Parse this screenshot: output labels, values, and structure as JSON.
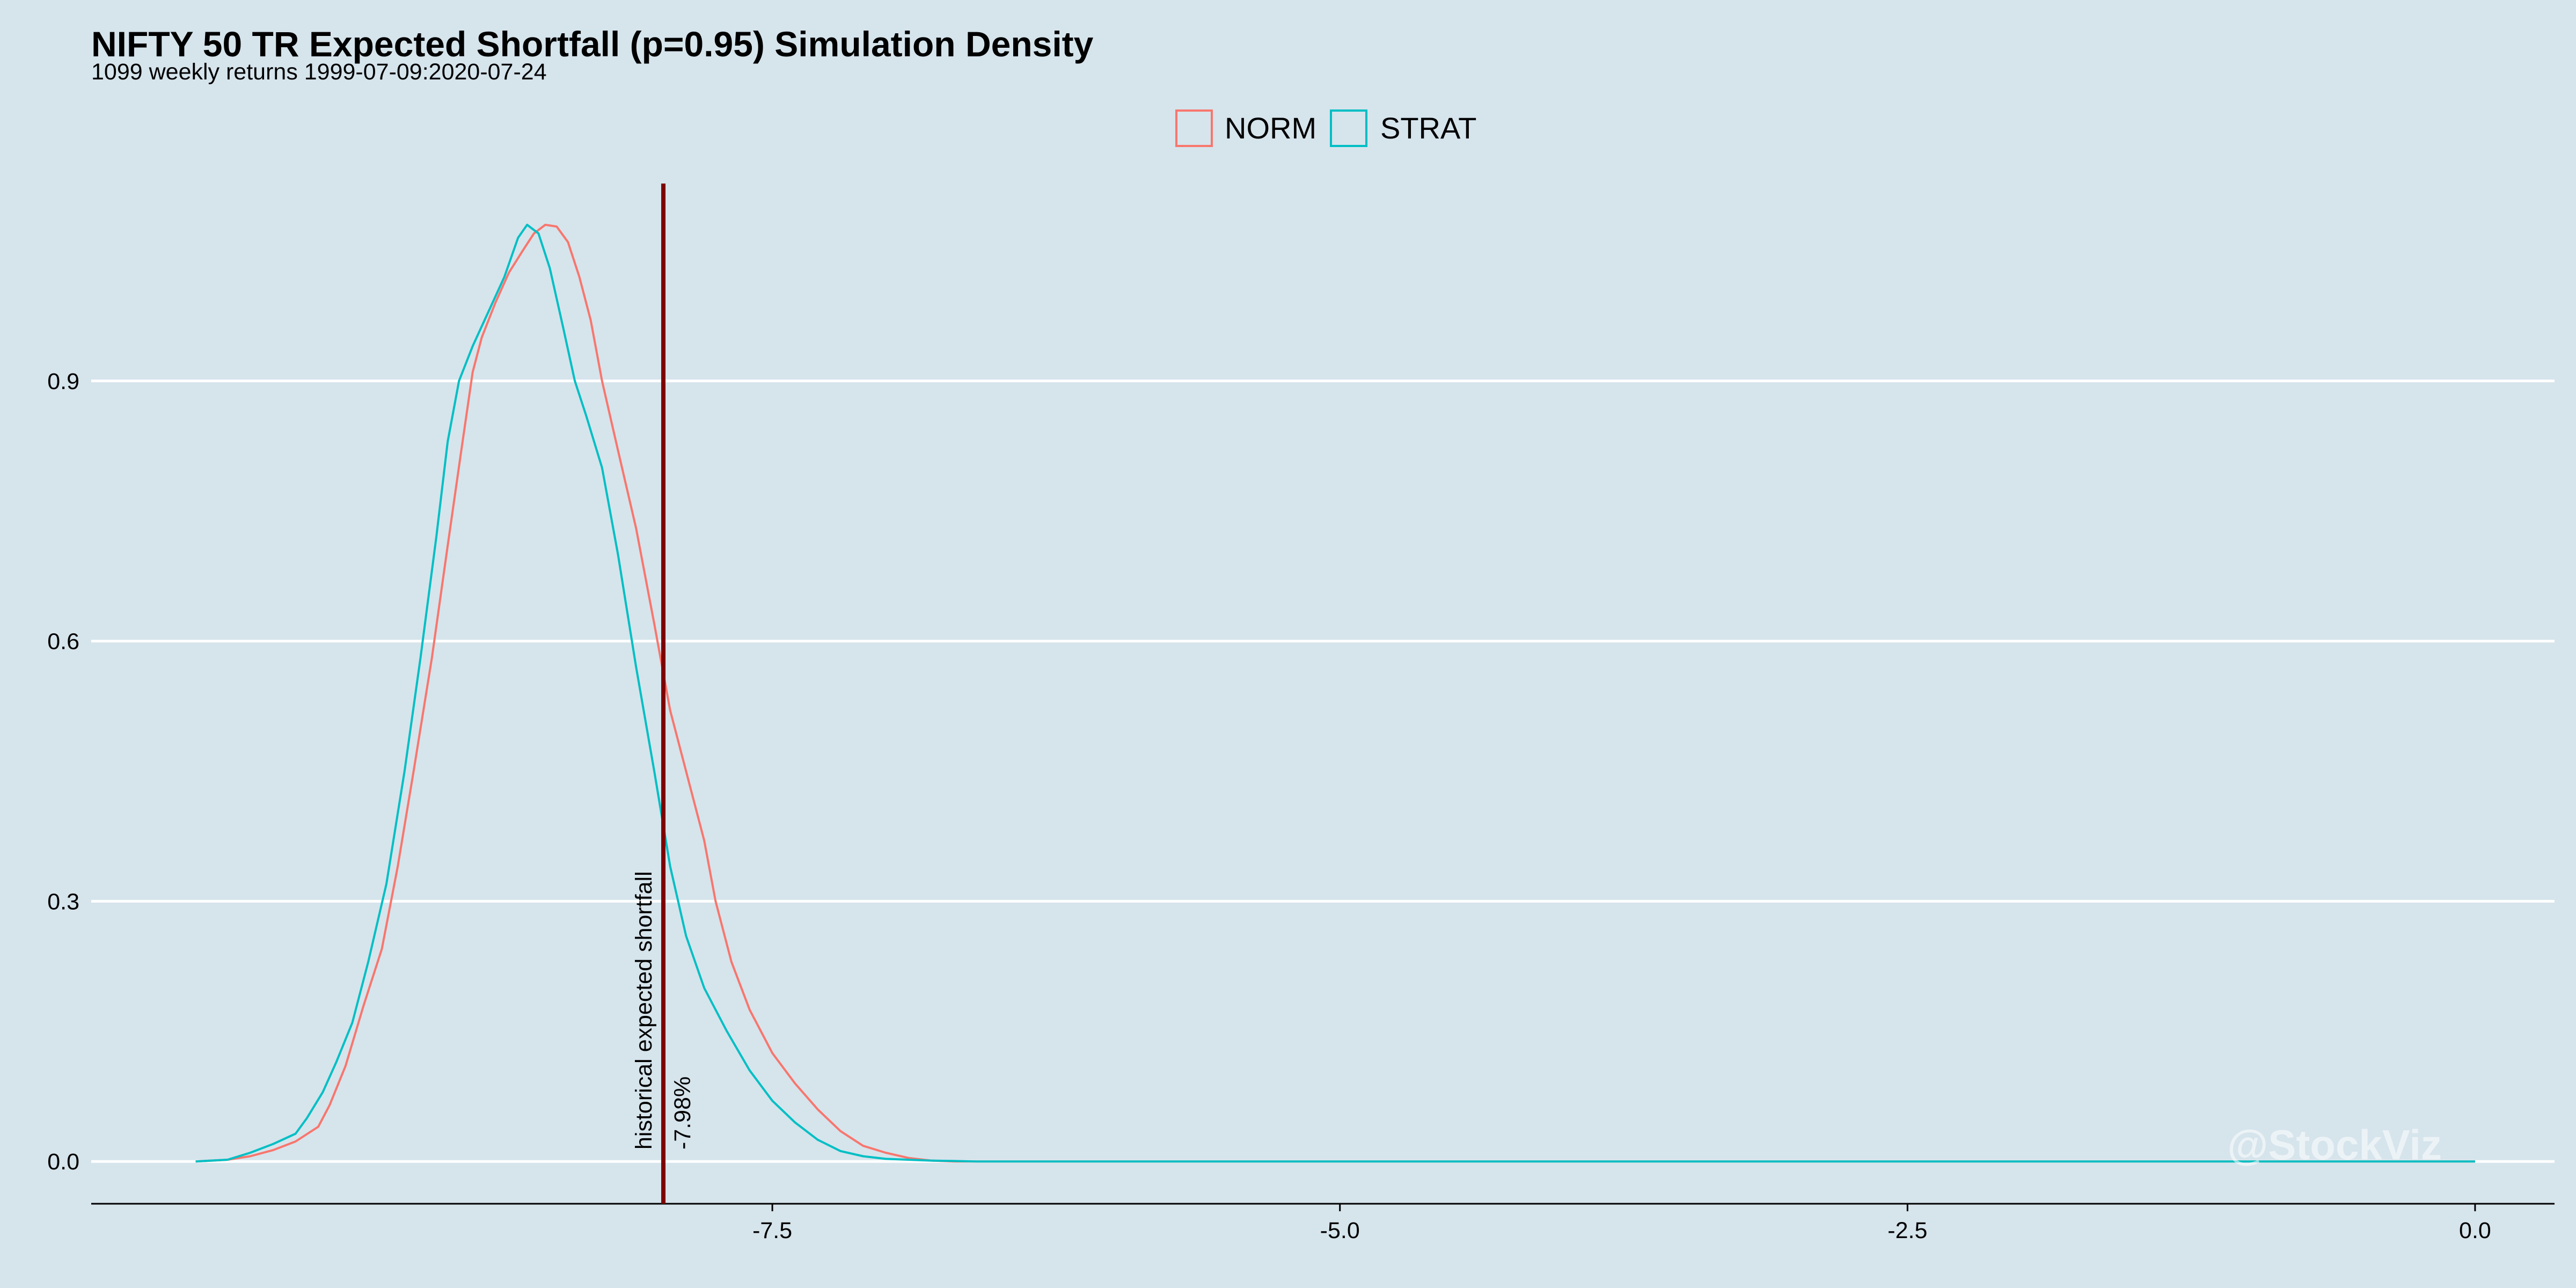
{
  "chart_data": {
    "type": "line",
    "title": "NIFTY 50 TR Expected Shortfall (p=0.95) Simulation Density",
    "subtitle": "1099 weekly returns 1999-07-09:2020-07-24",
    "xlabel": "",
    "ylabel": "",
    "xlim": [
      -10.5,
      0.35
    ],
    "ylim": [
      -0.05,
      1.135
    ],
    "xticks": [
      -7.5,
      -5.0,
      -2.5,
      0.0
    ],
    "xtick_labels": [
      "-7.5",
      "-5.0",
      "-2.5",
      "0.0"
    ],
    "yticks": [
      0.0,
      0.3,
      0.6,
      0.9
    ],
    "ytick_labels": [
      "0.0",
      "0.3",
      "0.6",
      "0.9"
    ],
    "grid": "horizontal major",
    "legend_position": "top",
    "series": [
      {
        "name": "NORM",
        "color": "#f8766d",
        "points": [
          [
            -10.04,
            0.0
          ],
          [
            -9.9,
            0.002
          ],
          [
            -9.8,
            0.006
          ],
          [
            -9.7,
            0.013
          ],
          [
            -9.6,
            0.023
          ],
          [
            -9.5,
            0.04
          ],
          [
            -9.45,
            0.065
          ],
          [
            -9.38,
            0.11
          ],
          [
            -9.3,
            0.18
          ],
          [
            -9.22,
            0.245
          ],
          [
            -9.15,
            0.34
          ],
          [
            -9.08,
            0.45
          ],
          [
            -9.0,
            0.58
          ],
          [
            -8.93,
            0.71
          ],
          [
            -8.87,
            0.82
          ],
          [
            -8.82,
            0.91
          ],
          [
            -8.78,
            0.95
          ],
          [
            -8.72,
            0.99
          ],
          [
            -8.66,
            1.025
          ],
          [
            -8.6,
            1.05
          ],
          [
            -8.55,
            1.07
          ],
          [
            -8.5,
            1.08
          ],
          [
            -8.45,
            1.078
          ],
          [
            -8.4,
            1.06
          ],
          [
            -8.35,
            1.02
          ],
          [
            -8.3,
            0.97
          ],
          [
            -8.25,
            0.9
          ],
          [
            -8.18,
            0.82
          ],
          [
            -8.1,
            0.73
          ],
          [
            -8.02,
            0.62
          ],
          [
            -7.95,
            0.52
          ],
          [
            -7.87,
            0.44
          ],
          [
            -7.8,
            0.37
          ],
          [
            -7.75,
            0.3
          ],
          [
            -7.68,
            0.23
          ],
          [
            -7.6,
            0.175
          ],
          [
            -7.5,
            0.125
          ],
          [
            -7.4,
            0.09
          ],
          [
            -7.3,
            0.06
          ],
          [
            -7.2,
            0.035
          ],
          [
            -7.1,
            0.018
          ],
          [
            -7.0,
            0.01
          ],
          [
            -6.9,
            0.004
          ],
          [
            -6.8,
            0.001
          ],
          [
            -6.7,
            0.0
          ],
          [
            0.0,
            0.0
          ]
        ]
      },
      {
        "name": "STRAT",
        "color": "#00bfc4",
        "points": [
          [
            -10.04,
            0.0
          ],
          [
            -9.9,
            0.002
          ],
          [
            -9.8,
            0.01
          ],
          [
            -9.7,
            0.02
          ],
          [
            -9.6,
            0.032
          ],
          [
            -9.55,
            0.05
          ],
          [
            -9.48,
            0.08
          ],
          [
            -9.42,
            0.115
          ],
          [
            -9.35,
            0.16
          ],
          [
            -9.28,
            0.23
          ],
          [
            -9.2,
            0.32
          ],
          [
            -9.12,
            0.45
          ],
          [
            -9.05,
            0.58
          ],
          [
            -8.98,
            0.72
          ],
          [
            -8.93,
            0.83
          ],
          [
            -8.88,
            0.9
          ],
          [
            -8.82,
            0.94
          ],
          [
            -8.75,
            0.98
          ],
          [
            -8.68,
            1.02
          ],
          [
            -8.62,
            1.065
          ],
          [
            -8.58,
            1.08
          ],
          [
            -8.53,
            1.07
          ],
          [
            -8.48,
            1.03
          ],
          [
            -8.42,
            0.96
          ],
          [
            -8.37,
            0.9
          ],
          [
            -8.32,
            0.86
          ],
          [
            -8.25,
            0.8
          ],
          [
            -8.18,
            0.7
          ],
          [
            -8.1,
            0.57
          ],
          [
            -8.02,
            0.45
          ],
          [
            -7.95,
            0.34
          ],
          [
            -7.88,
            0.26
          ],
          [
            -7.8,
            0.2
          ],
          [
            -7.7,
            0.15
          ],
          [
            -7.6,
            0.105
          ],
          [
            -7.5,
            0.07
          ],
          [
            -7.4,
            0.045
          ],
          [
            -7.3,
            0.025
          ],
          [
            -7.2,
            0.012
          ],
          [
            -7.1,
            0.006
          ],
          [
            -7.0,
            0.003
          ],
          [
            -6.8,
            0.001
          ],
          [
            -6.6,
            0.0
          ],
          [
            0.0,
            0.0
          ]
        ]
      }
    ],
    "vline": {
      "x": -7.98,
      "color": "#7f0000",
      "label": "historical expected shortfall",
      "value_label": "-7.98%"
    },
    "watermark": "@StockViz"
  }
}
